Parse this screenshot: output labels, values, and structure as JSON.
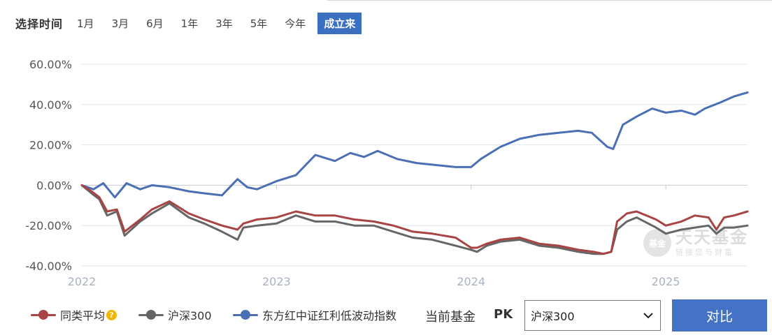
{
  "range_selector": {
    "label": "选择时间",
    "tabs": [
      {
        "label": "1月",
        "active": false
      },
      {
        "label": "3月",
        "active": false
      },
      {
        "label": "6月",
        "active": false
      },
      {
        "label": "1年",
        "active": false
      },
      {
        "label": "3年",
        "active": false
      },
      {
        "label": "5年",
        "active": false
      },
      {
        "label": "今年",
        "active": false
      },
      {
        "label": "成立来",
        "active": true
      }
    ]
  },
  "watermark": {
    "logo": "基金",
    "name": "天天基金",
    "slogan": "链接您与财富"
  },
  "legend": {
    "items": [
      {
        "label": "同类平均",
        "color": "#a84444",
        "icon": "question-icon"
      },
      {
        "label": "沪深300",
        "color": "#666666"
      },
      {
        "label": "东方红中证红利低波动指数",
        "color": "#4a6fb5"
      }
    ]
  },
  "controls": {
    "current_fund_label": "当前基金",
    "pk_label": "PK",
    "compare_select_value": "沪深300",
    "compare_button_label": "对比"
  },
  "chart_data": {
    "type": "line",
    "x_tick_labels": [
      "2022",
      "2023",
      "2024",
      "2025"
    ],
    "y_tick_labels": [
      "60.00%",
      "40.00%",
      "20.00%",
      "0.00%",
      "-20.00%",
      "-40.00%"
    ],
    "ylim": [
      -40,
      60
    ],
    "xlim": [
      2022.0,
      2025.42
    ],
    "grid": true,
    "legend_position": "bottom-left",
    "series": [
      {
        "name": "东方红中证红利低波动指数",
        "color": "#4a6fb5",
        "x": [
          2022.0,
          2022.06,
          2022.11,
          2022.17,
          2022.23,
          2022.3,
          2022.36,
          2022.45,
          2022.55,
          2022.63,
          2022.72,
          2022.8,
          2022.85,
          2022.9,
          2023.0,
          2023.1,
          2023.2,
          2023.3,
          2023.38,
          2023.45,
          2023.52,
          2023.62,
          2023.72,
          2023.82,
          2023.92,
          2024.0,
          2024.05,
          2024.15,
          2024.25,
          2024.35,
          2024.45,
          2024.55,
          2024.62,
          2024.7,
          2024.73,
          2024.78,
          2024.85,
          2024.93,
          2025.0,
          2025.08,
          2025.15,
          2025.2,
          2025.28,
          2025.35,
          2025.42
        ],
        "y": [
          0,
          -2,
          1,
          -6,
          1,
          -2,
          0,
          -1,
          -3,
          -4,
          -5,
          3,
          -1,
          -2,
          2,
          5,
          15,
          12,
          16,
          14,
          17,
          13,
          11,
          10,
          9,
          9,
          13,
          19,
          23,
          25,
          26,
          27,
          26,
          19,
          18,
          30,
          34,
          38,
          36,
          37,
          35,
          38,
          41,
          44,
          46
        ]
      },
      {
        "name": "沪深300",
        "color": "#666666",
        "x": [
          2022.0,
          2022.05,
          2022.09,
          2022.13,
          2022.18,
          2022.22,
          2022.3,
          2022.36,
          2022.45,
          2022.55,
          2022.63,
          2022.72,
          2022.8,
          2022.83,
          2022.9,
          2023.0,
          2023.1,
          2023.2,
          2023.3,
          2023.4,
          2023.5,
          2023.6,
          2023.7,
          2023.8,
          2023.92,
          2024.0,
          2024.03,
          2024.08,
          2024.15,
          2024.25,
          2024.35,
          2024.45,
          2024.55,
          2024.63,
          2024.68,
          2024.72,
          2024.75,
          2024.8,
          2024.85,
          2024.95,
          2025.0,
          2025.08,
          2025.15,
          2025.22,
          2025.26,
          2025.3,
          2025.35,
          2025.42
        ],
        "y": [
          0,
          -4,
          -7,
          -15,
          -13,
          -25,
          -18,
          -14,
          -9,
          -16,
          -19,
          -23,
          -27,
          -21,
          -20,
          -19,
          -15,
          -18,
          -18,
          -20,
          -20,
          -23,
          -26,
          -27,
          -30,
          -32,
          -33,
          -30,
          -28,
          -27,
          -30,
          -31,
          -33,
          -34,
          -34,
          -33,
          -22,
          -18,
          -16,
          -21,
          -24,
          -22,
          -21,
          -20,
          -24,
          -21,
          -21,
          -20
        ]
      },
      {
        "name": "同类平均",
        "color": "#a84444",
        "x": [
          2022.0,
          2022.05,
          2022.09,
          2022.13,
          2022.18,
          2022.22,
          2022.3,
          2022.36,
          2022.45,
          2022.55,
          2022.63,
          2022.72,
          2022.8,
          2022.83,
          2022.9,
          2023.0,
          2023.1,
          2023.2,
          2023.3,
          2023.4,
          2023.5,
          2023.6,
          2023.7,
          2023.8,
          2023.92,
          2024.0,
          2024.03,
          2024.08,
          2024.15,
          2024.25,
          2024.35,
          2024.45,
          2024.55,
          2024.63,
          2024.68,
          2024.72,
          2024.75,
          2024.8,
          2024.85,
          2024.95,
          2025.0,
          2025.08,
          2025.15,
          2025.22,
          2025.26,
          2025.3,
          2025.35,
          2025.42
        ],
        "y": [
          0,
          -3,
          -6,
          -13,
          -12,
          -23,
          -17,
          -12,
          -8,
          -14,
          -17,
          -20,
          -22,
          -19,
          -17,
          -16,
          -13,
          -15,
          -15,
          -17,
          -18,
          -20,
          -23,
          -24,
          -26,
          -31,
          -31,
          -29,
          -27,
          -26,
          -29,
          -30,
          -32,
          -33,
          -34,
          -33,
          -18,
          -14,
          -13,
          -17,
          -20,
          -18,
          -15,
          -16,
          -22,
          -16,
          -15,
          -13
        ]
      }
    ]
  }
}
